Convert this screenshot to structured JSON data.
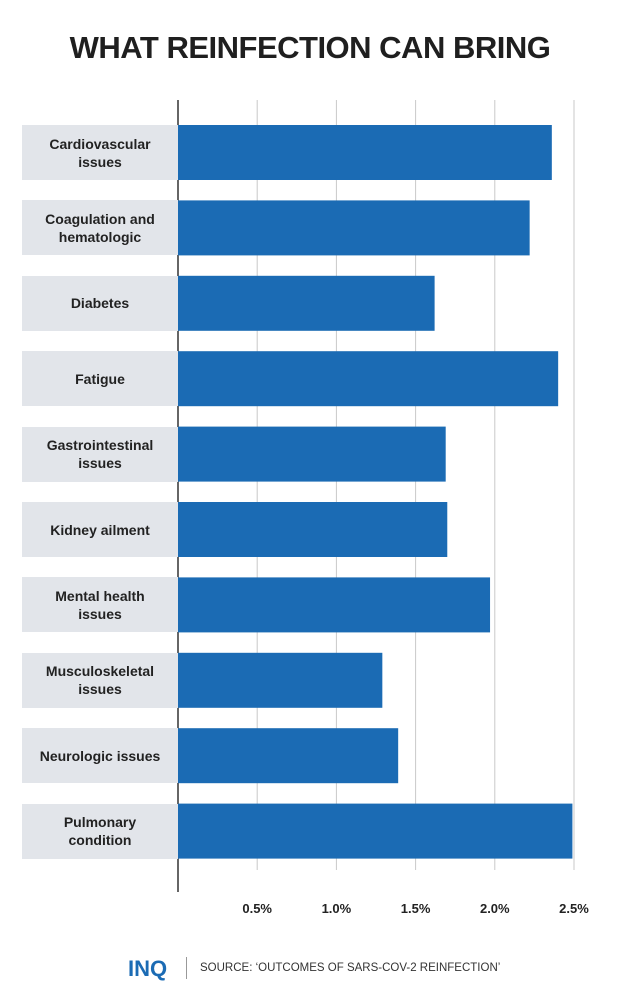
{
  "chart_data": {
    "type": "bar",
    "orientation": "horizontal",
    "title": "WHAT REINFECTION CAN BRING",
    "categories": [
      "Cardiovascular issues",
      "Coagulation and hematologic",
      "Diabetes",
      "Fatigue",
      "Gastrointestinal issues",
      "Kidney ailment",
      "Mental health issues",
      "Musculoskeletal issues",
      "Neurologic issues",
      "Pulmonary condition"
    ],
    "values": [
      2.36,
      2.22,
      1.62,
      2.4,
      1.69,
      1.7,
      1.97,
      1.29,
      1.39,
      2.49
    ],
    "color": "#1b6bb4",
    "xlim": [
      0,
      2.5
    ],
    "xticks": [
      {
        "value": 0.5,
        "label": "0.5%"
      },
      {
        "value": 1.0,
        "label": "1.0%"
      },
      {
        "value": 1.5,
        "label": "1.5%"
      },
      {
        "value": 2.0,
        "label": "2.0%"
      },
      {
        "value": 2.5,
        "label": "2.5%"
      }
    ],
    "grid": true
  },
  "footer": {
    "logo": "INQ",
    "source": "SOURCE: ‘OUTCOMES OF SARS-COV-2 REINFECTION’"
  }
}
